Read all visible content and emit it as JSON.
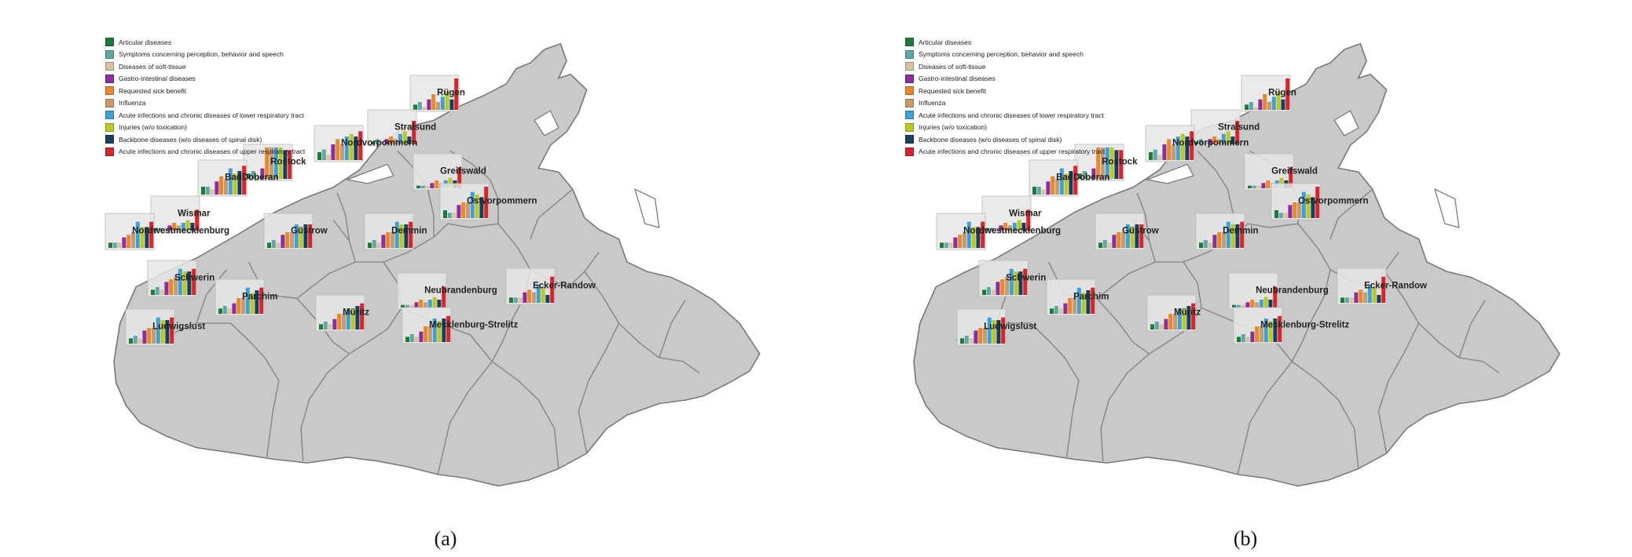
{
  "colors": [
    "#1f7a3a",
    "#5fa8a6",
    "#d9c3a0",
    "#8b2fa0",
    "#e8872b",
    "#c89a6c",
    "#3fa0d8",
    "#b8c926",
    "#16405e",
    "#d6262b"
  ],
  "legend": [
    "Articular diseases",
    "Symptoms concerning perception, behavior and speech",
    "Diseases of soft-tissue",
    "Gastro-intestinal diseases",
    "Requested sick benefit",
    "Influenza",
    "Acute infections and chronic diseases of lower respiratory tract",
    "Injuries (w/o toxication)",
    "Backbone diseases (w/o diseases of spinal disk)",
    "Acute infections and chronic diseases of upper respiratory tract"
  ],
  "captions": [
    "(a)",
    "(b)"
  ],
  "districts": [
    {
      "name": "Rügen",
      "values": [
        2,
        3,
        1,
        4,
        6,
        3,
        5,
        7,
        4,
        12
      ],
      "a": [
        400,
        60
      ],
      "b": [
        440,
        60
      ]
    },
    {
      "name": "Stralsund",
      "values": [
        1,
        2,
        1,
        2,
        3,
        2,
        4,
        5,
        3,
        9
      ],
      "a": [
        346,
        104
      ],
      "b": [
        376,
        104
      ]
    },
    {
      "name": "Nordvorpommern",
      "values": [
        3,
        4,
        2,
        6,
        8,
        6,
        9,
        10,
        9,
        11
      ],
      "a": [
        278,
        124
      ],
      "b": [
        318,
        124
      ]
    },
    {
      "name": "Rostock",
      "values": [
        2,
        3,
        1,
        4,
        12,
        12,
        12,
        12,
        11,
        11
      ],
      "a": [
        188,
        148
      ],
      "b": [
        228,
        148
      ]
    },
    {
      "name": "BadDoberan",
      "values": [
        3,
        3,
        2,
        5,
        7,
        6,
        10,
        8,
        9,
        11
      ],
      "a": [
        130,
        168
      ],
      "b": [
        170,
        168
      ]
    },
    {
      "name": "Greifswald",
      "values": [
        1,
        1,
        1,
        2,
        3,
        2,
        3,
        4,
        3,
        8
      ],
      "a": [
        404,
        160
      ],
      "b": [
        444,
        160
      ]
    },
    {
      "name": "Ostvorpommern",
      "values": [
        3,
        2,
        2,
        5,
        6,
        6,
        10,
        9,
        8,
        12
      ],
      "a": [
        438,
        198
      ],
      "b": [
        478,
        198
      ]
    },
    {
      "name": "Wismar",
      "values": [
        1,
        1,
        1,
        2,
        3,
        2,
        3,
        4,
        3,
        8
      ],
      "a": [
        70,
        214
      ],
      "b": [
        110,
        214
      ]
    },
    {
      "name": "Nordwestmecklenburg",
      "values": [
        2,
        2,
        2,
        4,
        5,
        6,
        10,
        8,
        8,
        10
      ],
      "a": [
        12,
        236
      ],
      "b": [
        52,
        236
      ]
    },
    {
      "name": "Güstrow",
      "values": [
        2,
        3,
        2,
        5,
        6,
        6,
        9,
        8,
        9,
        9
      ],
      "a": [
        214,
        236
      ],
      "b": [
        254,
        236
      ]
    },
    {
      "name": "Demmin",
      "values": [
        2,
        3,
        2,
        5,
        6,
        6,
        10,
        9,
        9,
        10
      ],
      "a": [
        342,
        236
      ],
      "b": [
        382,
        236
      ]
    },
    {
      "name": "Schwerin",
      "values": [
        2,
        3,
        2,
        5,
        6,
        7,
        10,
        9,
        9,
        10
      ],
      "a": [
        66,
        296
      ],
      "b": [
        106,
        296
      ]
    },
    {
      "name": "Parchim",
      "values": [
        2,
        3,
        2,
        4,
        6,
        6,
        10,
        8,
        9,
        10
      ],
      "a": [
        152,
        320
      ],
      "b": [
        192,
        320
      ]
    },
    {
      "name": "Neubrandenburg",
      "values": [
        1,
        1,
        1,
        2,
        3,
        2,
        3,
        4,
        3,
        8
      ],
      "a": [
        384,
        312
      ],
      "b": [
        424,
        312
      ]
    },
    {
      "name": "Ecker-Randow",
      "values": [
        2,
        2,
        2,
        4,
        5,
        4,
        7,
        6,
        3,
        10
      ],
      "a": [
        522,
        306
      ],
      "b": [
        562,
        306
      ]
    },
    {
      "name": "Müritz",
      "values": [
        2,
        3,
        2,
        4,
        6,
        6,
        8,
        8,
        9,
        10
      ],
      "a": [
        280,
        340
      ],
      "b": [
        320,
        340
      ]
    },
    {
      "name": "Mecklenburg-Strelitz",
      "values": [
        2,
        3,
        2,
        4,
        6,
        6,
        9,
        8,
        9,
        10
      ],
      "a": [
        390,
        356
      ],
      "b": [
        430,
        356
      ]
    },
    {
      "name": "Ludwigslust",
      "values": [
        2,
        3,
        2,
        5,
        6,
        6,
        10,
        9,
        9,
        10
      ],
      "a": [
        38,
        358
      ],
      "b": [
        78,
        358
      ]
    }
  ]
}
